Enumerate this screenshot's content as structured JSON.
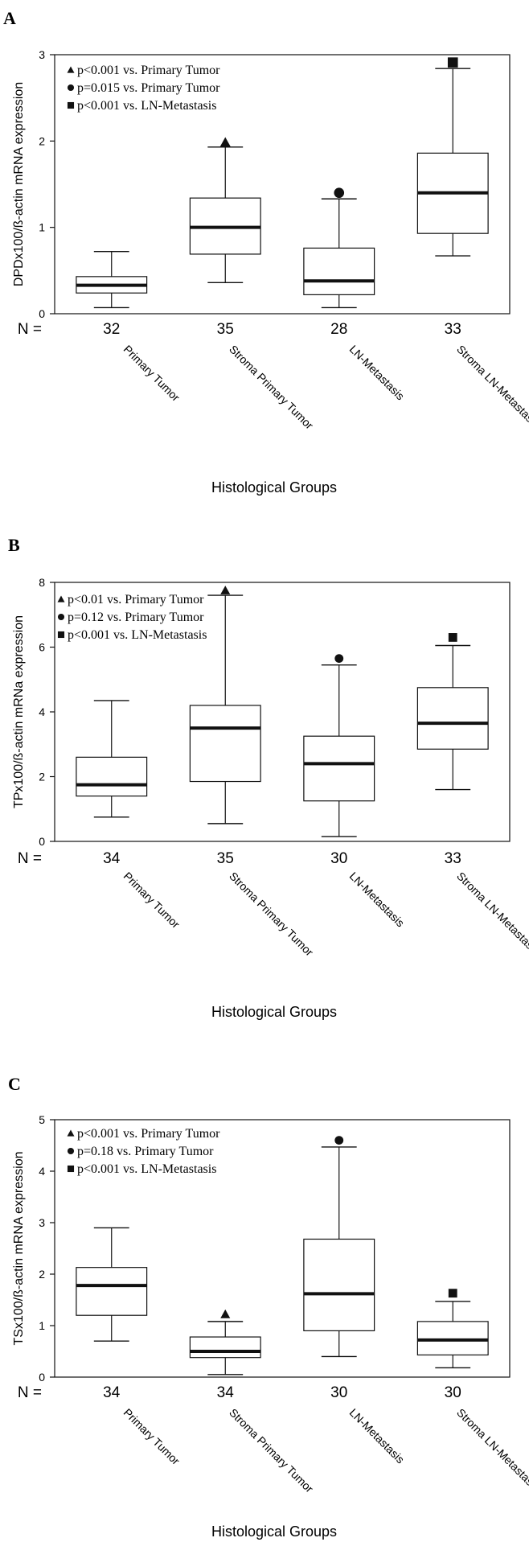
{
  "chart_data": [
    {
      "panel": "A",
      "type": "box",
      "ylabel": "DPDx100/ß-actin mRNA expression",
      "xlabel": "Histological Groups",
      "n_label": "N =",
      "ylim": [
        0,
        3
      ],
      "yticks": [
        0,
        1,
        2,
        3
      ],
      "legend": [
        {
          "symbol": "triangle",
          "text": "p<0.001 vs. Primary Tumor"
        },
        {
          "symbol": "circle",
          "text": "p=0.015 vs. Primary Tumor"
        },
        {
          "symbol": "square",
          "text": "p<0.001 vs. LN-Metastasis"
        }
      ],
      "categories": [
        "Primary Tumor",
        "Stroma Primary Tumor",
        "LN-Metastasis",
        "Stroma LN-Metastasis"
      ],
      "n": [
        "32",
        "35",
        "28",
        "33"
      ],
      "boxes": [
        {
          "min": 0.07,
          "q1": 0.24,
          "median": 0.33,
          "q3": 0.43,
          "max": 0.72,
          "marker": null,
          "marker_value": null
        },
        {
          "min": 0.36,
          "q1": 0.69,
          "median": 1.0,
          "q3": 1.34,
          "max": 1.93,
          "marker": "triangle",
          "marker_value": 1.98
        },
        {
          "min": 0.07,
          "q1": 0.22,
          "median": 0.38,
          "q3": 0.76,
          "max": 1.33,
          "marker": "circle",
          "marker_value": 1.4
        },
        {
          "min": 0.67,
          "q1": 0.93,
          "median": 1.4,
          "q3": 1.86,
          "max": 2.84,
          "marker": "square",
          "marker_value": 2.91
        }
      ]
    },
    {
      "panel": "B",
      "type": "box",
      "ylabel": "TPx100/ß-actin mRNa expression",
      "xlabel": "Histological Groups",
      "n_label": "N =",
      "ylim": [
        0,
        8
      ],
      "yticks": [
        0,
        2,
        4,
        6,
        8
      ],
      "legend": [
        {
          "symbol": "triangle",
          "text": "p<0.01 vs. Primary Tumor"
        },
        {
          "symbol": "circle",
          "text": "p=0.12 vs. Primary Tumor"
        },
        {
          "symbol": "square",
          "text": "p<0.001 vs. LN-Metastasis"
        }
      ],
      "categories": [
        "Primary Tumor",
        "Stroma Primary Tumor",
        "LN-Metastasis",
        "Stroma LN-Metastasis"
      ],
      "n": [
        "34",
        "35",
        "30",
        "33"
      ],
      "boxes": [
        {
          "min": 0.75,
          "q1": 1.4,
          "median": 1.75,
          "q3": 2.6,
          "max": 4.35,
          "marker": null,
          "marker_value": null
        },
        {
          "min": 0.55,
          "q1": 1.85,
          "median": 3.5,
          "q3": 4.2,
          "max": 7.6,
          "marker": "triangle",
          "marker_value": 7.75
        },
        {
          "min": 0.15,
          "q1": 1.25,
          "median": 2.4,
          "q3": 3.25,
          "max": 5.45,
          "marker": "circle",
          "marker_value": 5.65
        },
        {
          "min": 1.6,
          "q1": 2.85,
          "median": 3.65,
          "q3": 4.75,
          "max": 6.05,
          "marker": "square",
          "marker_value": 6.3
        }
      ]
    },
    {
      "panel": "C",
      "type": "box",
      "ylabel": "TSx100/ß-actin mRNA expression",
      "xlabel": "Histological Groups",
      "n_label": "N =",
      "ylim": [
        0,
        5
      ],
      "yticks": [
        0,
        1,
        2,
        3,
        4,
        5
      ],
      "legend": [
        {
          "symbol": "triangle",
          "text": "p<0.001 vs. Primary Tumor"
        },
        {
          "symbol": "circle",
          "text": "p=0.18 vs. Primary Tumor"
        },
        {
          "symbol": "square",
          "text": "p<0.001 vs. LN-Metastasis"
        }
      ],
      "categories": [
        "Primary Tumor",
        "Stroma Primary Tumor",
        "LN-Metastasis",
        "Stroma LN-Metastasis"
      ],
      "n": [
        "34",
        "34",
        "30",
        "30"
      ],
      "boxes": [
        {
          "min": 0.7,
          "q1": 1.2,
          "median": 1.78,
          "q3": 2.13,
          "max": 2.9,
          "marker": null,
          "marker_value": null
        },
        {
          "min": 0.05,
          "q1": 0.38,
          "median": 0.5,
          "q3": 0.78,
          "max": 1.08,
          "marker": "triangle",
          "marker_value": 1.22
        },
        {
          "min": 0.4,
          "q1": 0.9,
          "median": 1.62,
          "q3": 2.68,
          "max": 4.47,
          "marker": "circle",
          "marker_value": 4.6
        },
        {
          "min": 0.18,
          "q1": 0.43,
          "median": 0.72,
          "q3": 1.08,
          "max": 1.47,
          "marker": "square",
          "marker_value": 1.63
        }
      ]
    }
  ]
}
